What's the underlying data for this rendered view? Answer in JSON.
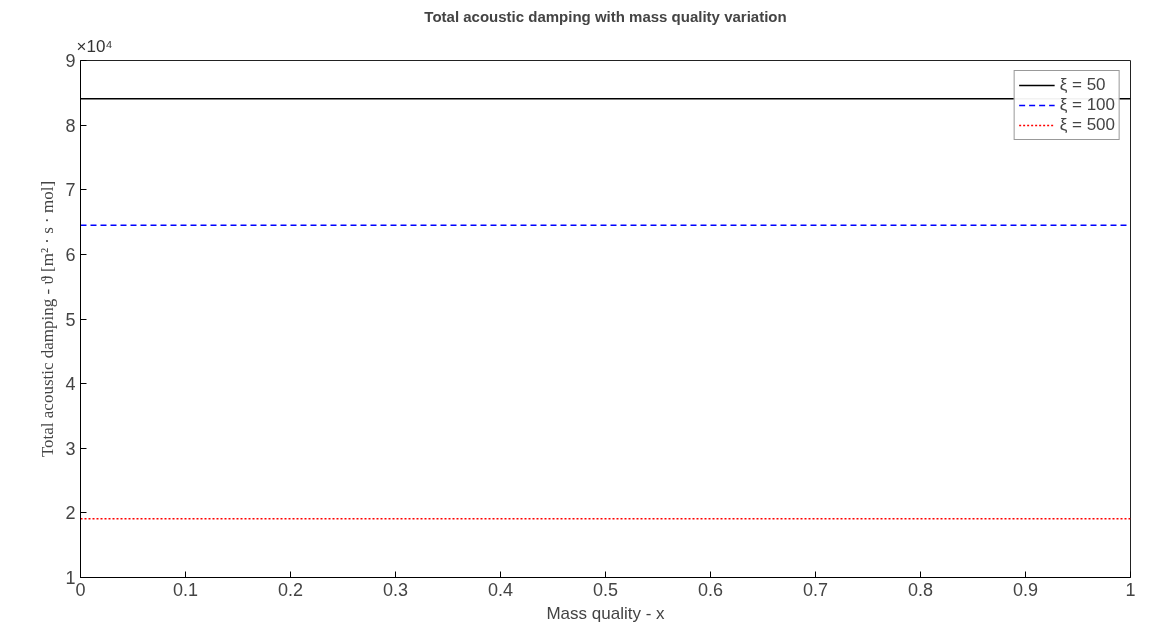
{
  "chart_data": {
    "type": "line",
    "title": "Total acoustic damping with mass quality variation",
    "xlabel": "Mass quality - x",
    "ylabel": "Total acoustic damping - ϑ [m² · s · mol]",
    "x": [
      0,
      1
    ],
    "series": [
      {
        "name": "ξ = 50",
        "color": "#000000",
        "values": [
          8.41,
          8.41
        ],
        "line_style": "solid"
      },
      {
        "name": "ξ = 100",
        "color": "#0000ff",
        "values": [
          6.45,
          6.45
        ],
        "line_style": "dashed"
      },
      {
        "name": "ξ = 500",
        "color": "#ff0000",
        "values": [
          1.91,
          1.91
        ],
        "line_style": "dotted"
      }
    ],
    "xlim": [
      0,
      1
    ],
    "xticks": [
      0,
      0.1,
      0.2,
      0.3,
      0.4,
      0.5,
      0.6,
      0.7,
      0.8,
      0.9,
      1
    ],
    "ylim": [
      1,
      9
    ],
    "yticks": [
      1,
      2,
      3,
      4,
      5,
      6,
      7,
      8,
      9
    ],
    "annotations": [
      "×10⁴"
    ],
    "grid": false,
    "legend": "top right",
    "marker": "none"
  }
}
